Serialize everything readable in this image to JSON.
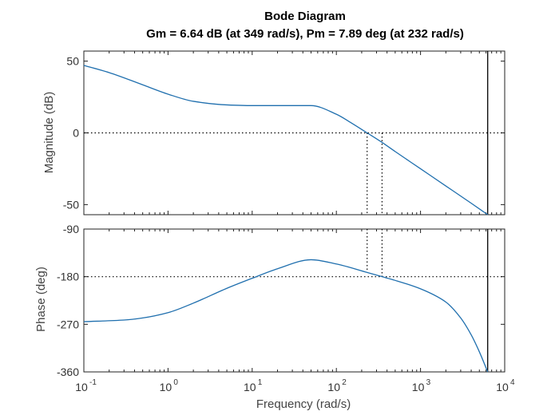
{
  "chart_data": {
    "type": "line",
    "title": "Bode Diagram",
    "subtitle": "Gm = 6.64 dB (at 349 rad/s),  Pm = 7.89 deg (at 232 rad/s)",
    "x_scale": "log",
    "xlim": [
      0.1,
      10000
    ],
    "xlabel": "Frequency  (rad/s)",
    "x_ticks": [
      {
        "value": 0.1,
        "base": "10",
        "exp": "-1"
      },
      {
        "value": 1,
        "base": "10",
        "exp": "0"
      },
      {
        "value": 10,
        "base": "10",
        "exp": "1"
      },
      {
        "value": 100,
        "base": "10",
        "exp": "2"
      },
      {
        "value": 1000,
        "base": "10",
        "exp": "3"
      },
      {
        "value": 10000,
        "base": "10",
        "exp": "4"
      }
    ],
    "nyquist_frequency": 6280,
    "crossover": {
      "gain_margin_freq": 349,
      "phase_margin_freq": 232,
      "gain_margin_db": 6.64,
      "phase_margin_deg": 7.89
    },
    "magnitude": {
      "ylabel": "Magnitude (dB)",
      "ylim": [
        -57,
        57
      ],
      "y_ticks": [
        {
          "value": 50,
          "label": "50"
        },
        {
          "value": 0,
          "label": "0"
        },
        {
          "value": -50,
          "label": "-50"
        }
      ],
      "reference_line": 0,
      "x": [
        0.1,
        0.2,
        0.5,
        1,
        2,
        5,
        10,
        20,
        50,
        100,
        150,
        232,
        349,
        500,
        1000,
        2000,
        4000,
        6280
      ],
      "y": [
        47,
        42,
        33.5,
        27,
        22,
        19.5,
        19,
        19,
        19,
        13,
        7,
        0,
        -6.64,
        -13,
        -25,
        -37,
        -49,
        -57
      ]
    },
    "phase": {
      "ylabel": "Phase (deg)",
      "ylim": [
        -360,
        -90
      ],
      "y_ticks": [
        {
          "value": -90,
          "label": "-90"
        },
        {
          "value": -180,
          "label": "-180"
        },
        {
          "value": -270,
          "label": "-270"
        },
        {
          "value": -360,
          "label": "-360"
        }
      ],
      "reference_line": -180,
      "x": [
        0.1,
        0.3,
        0.5,
        1,
        2,
        5,
        10,
        20,
        50,
        100,
        232,
        349,
        500,
        1000,
        2000,
        3000,
        4000,
        5000,
        6280
      ],
      "y": [
        -265,
        -262,
        -258,
        -248,
        -230,
        -202,
        -183,
        -165,
        -148,
        -156,
        -172,
        -180,
        -187,
        -203,
        -228,
        -258,
        -290,
        -322,
        -360
      ]
    }
  }
}
